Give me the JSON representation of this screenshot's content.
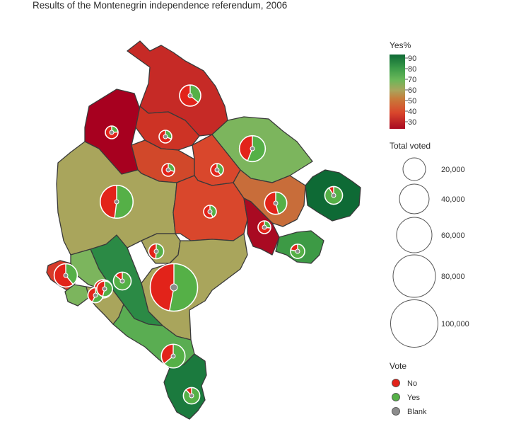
{
  "title": "Results of the Montenegrin independence referendum, 2006",
  "colors": {
    "no": "#e2231a",
    "yes": "#55b047",
    "blank": "#8c8c8c",
    "border": "#3a3a3a"
  },
  "legend": {
    "yes_pct_title": "Yes%",
    "yes_pct_ticks": [
      "90",
      "80",
      "70",
      "60",
      "50",
      "40",
      "30"
    ],
    "total_voted_title": "Total voted",
    "total_voted_items": [
      "20,000",
      "40,000",
      "60,000",
      "80,000",
      "100,000"
    ],
    "vote_title": "Vote",
    "vote_items": [
      {
        "label": "No",
        "color": "#e2231a"
      },
      {
        "label": "Yes",
        "color": "#55b047"
      },
      {
        "label": "Blank",
        "color": "#8c8c8c"
      }
    ]
  },
  "municipalities": [
    {
      "id": "pljevlja",
      "yes_pct": 36,
      "color": "#c62a26",
      "total_voted": 20000
    },
    {
      "id": "pluzine",
      "yes_pct": 24,
      "color": "#a7001f",
      "total_voted": 5000
    },
    {
      "id": "zabljak",
      "yes_pct": 31,
      "color": "#cd3325",
      "total_voted": 5000
    },
    {
      "id": "bijelo-polje",
      "yes_pct": 56,
      "color": "#7cb55d",
      "total_voted": 30000
    },
    {
      "id": "savnik",
      "yes_pct": 29,
      "color": "#d1482a",
      "total_voted": 4000
    },
    {
      "id": "mojkovac",
      "yes_pct": 40,
      "color": "#d9472c",
      "total_voted": 7000
    },
    {
      "id": "niksic",
      "yes_pct": 52,
      "color": "#a9a55c",
      "total_voted": 48000
    },
    {
      "id": "kolasin",
      "yes_pct": 42,
      "color": "#d9472c",
      "total_voted": 7000
    },
    {
      "id": "berane",
      "yes_pct": 46,
      "color": "#c86d3a",
      "total_voted": 22000
    },
    {
      "id": "rozaje",
      "yes_pct": 91,
      "color": "#0e6a35",
      "total_voted": 14000
    },
    {
      "id": "andrijevica",
      "yes_pct": 27,
      "color": "#a90a22",
      "total_voted": 4000
    },
    {
      "id": "plav",
      "yes_pct": 78,
      "color": "#3d9a45",
      "total_voted": 9000
    },
    {
      "id": "danilovgrad",
      "yes_pct": 51,
      "color": "#a9a55c",
      "total_voted": 10000
    },
    {
      "id": "podgorica",
      "yes_pct": 53,
      "color": "#a9a55c",
      "total_voted": 100000
    },
    {
      "id": "cetinje",
      "yes_pct": 86,
      "color": "#2b8a45",
      "total_voted": 14000
    },
    {
      "id": "herceg-novi",
      "yes_pct": 39,
      "color": "#d63a2a",
      "total_voted": 24000
    },
    {
      "id": "kotor",
      "yes_pct": 55,
      "color": "#7cb55d",
      "total_voted": 15000
    },
    {
      "id": "tivat",
      "yes_pct": 57,
      "color": "#7cb55d",
      "total_voted": 10000
    },
    {
      "id": "budva",
      "yes_pct": 54,
      "color": "#a9a55c",
      "total_voted": 11000
    },
    {
      "id": "bar",
      "yes_pct": 64,
      "color": "#5aad52",
      "total_voted": 25000
    },
    {
      "id": "ulcinj",
      "yes_pct": 88,
      "color": "#1b7a3e",
      "total_voted": 12000
    }
  ]
}
